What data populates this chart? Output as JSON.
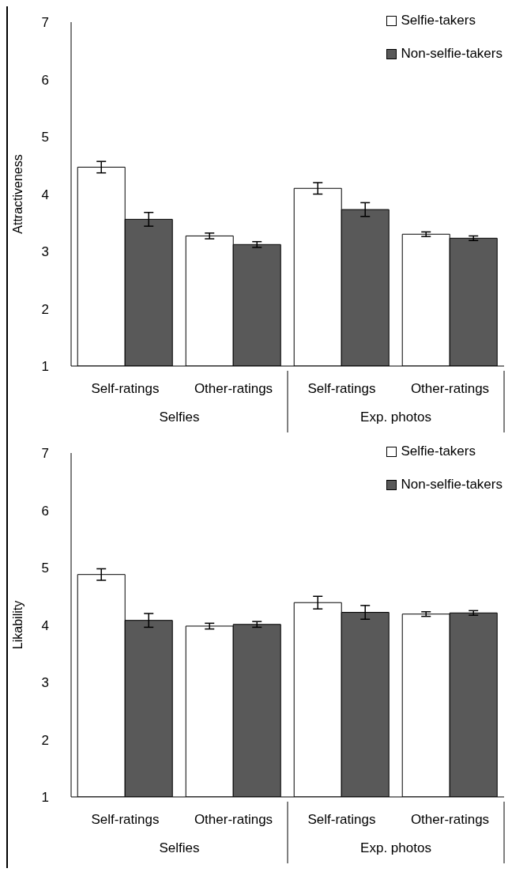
{
  "chart_data": [
    {
      "type": "bar",
      "ylabel": "Attractiveness",
      "categories": [
        "Self-ratings",
        "Other-ratings",
        "Self-ratings",
        "Other-ratings"
      ],
      "annotations": [
        "Selfies",
        "Exp. photos"
      ],
      "series": [
        {
          "name": "Selfie-takers",
          "color": "#ffffff",
          "values": [
            4.47,
            3.27,
            4.1,
            3.3
          ],
          "errors": [
            0.1,
            0.05,
            0.1,
            0.04
          ]
        },
        {
          "name": "Non-selfie-takers",
          "color": "#595959",
          "values": [
            3.56,
            3.12,
            3.73,
            3.23
          ],
          "errors": [
            0.12,
            0.05,
            0.12,
            0.04
          ]
        }
      ],
      "ylim": [
        1,
        7
      ],
      "yticks": [
        1,
        2,
        3,
        4,
        5,
        6,
        7
      ],
      "grid": false,
      "legend": "top right"
    },
    {
      "type": "bar",
      "ylabel": "Likability",
      "categories": [
        "Self-ratings",
        "Other-ratings",
        "Self-ratings",
        "Other-ratings"
      ],
      "annotations": [
        "Selfies",
        "Exp. photos"
      ],
      "series": [
        {
          "name": "Selfie-takers",
          "color": "#ffffff",
          "values": [
            4.88,
            3.98,
            4.39,
            4.19
          ],
          "errors": [
            0.1,
            0.05,
            0.11,
            0.04
          ]
        },
        {
          "name": "Non-selfie-takers",
          "color": "#595959",
          "values": [
            4.08,
            4.01,
            4.22,
            4.21
          ],
          "errors": [
            0.12,
            0.05,
            0.12,
            0.04
          ]
        }
      ],
      "ylim": [
        1,
        7
      ],
      "yticks": [
        1,
        2,
        3,
        4,
        5,
        6,
        7
      ],
      "grid": false,
      "legend": "top right"
    }
  ]
}
